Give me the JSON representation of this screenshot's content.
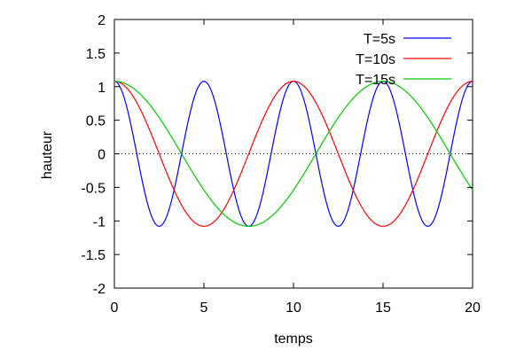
{
  "chart_data": {
    "type": "line",
    "title": "",
    "xlabel": "temps",
    "ylabel": "hauteur",
    "xlim": [
      0,
      20
    ],
    "ylim": [
      -2,
      2
    ],
    "xticks": [
      0,
      5,
      10,
      15,
      20
    ],
    "yticks": [
      -2,
      -1.5,
      -1,
      -0.5,
      0,
      0.5,
      1,
      1.5,
      2
    ],
    "xtick_labels": [
      "0",
      "5",
      "10",
      "15",
      "20"
    ],
    "ytick_labels": [
      "-2",
      "-1.5",
      "-1",
      "-0.5",
      "0",
      "0.5",
      "1",
      "1.5",
      "2"
    ],
    "grid": false,
    "legend_position": "top-right",
    "zero_line": {
      "y": 0,
      "style": "dotted",
      "color": "#000000"
    },
    "series": [
      {
        "name": "T=5s",
        "color": "#0000ff",
        "function": "1.08*cos(2*pi*t/5)",
        "amplitude": 1.08,
        "period": 5
      },
      {
        "name": "T=10s",
        "color": "#ff0000",
        "function": "1.08*cos(2*pi*t/10)",
        "amplitude": 1.08,
        "period": 10
      },
      {
        "name": "T=15s",
        "color": "#00cc00",
        "function": "1.08*cos(2*pi*t/15)",
        "amplitude": 1.08,
        "period": 15
      }
    ]
  }
}
